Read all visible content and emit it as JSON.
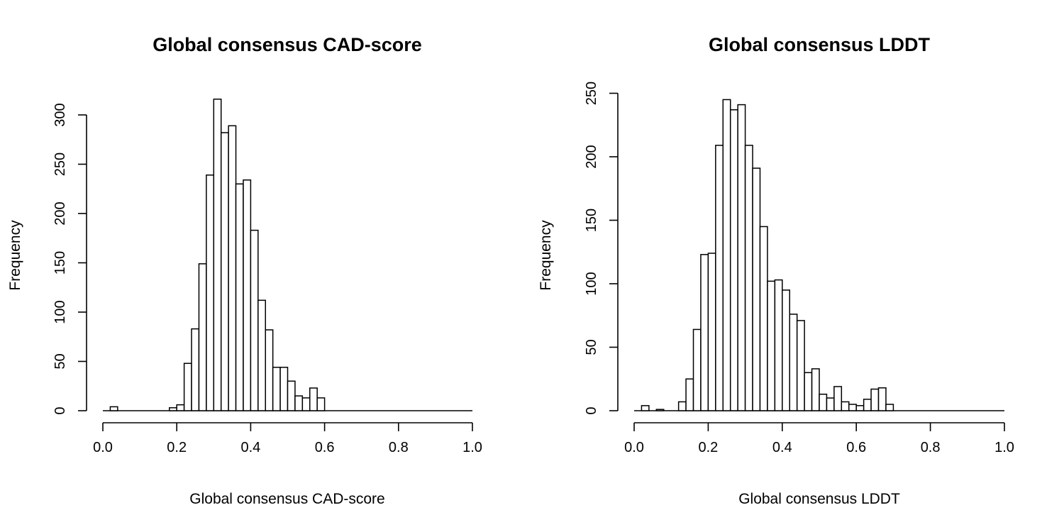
{
  "chart_data": [
    {
      "type": "bar",
      "title": "Global consensus CAD-score",
      "xlabel": "Global consensus CAD-score",
      "ylabel": "Frequency",
      "xlim": [
        0,
        1
      ],
      "ylim": [
        0,
        320
      ],
      "x_ticks": [
        0.0,
        0.2,
        0.4,
        0.6,
        0.8,
        1.0
      ],
      "x_tick_labels": [
        "0.0",
        "0.2",
        "0.4",
        "0.6",
        "0.8",
        "1.0"
      ],
      "y_ticks": [
        0,
        50,
        100,
        150,
        200,
        250,
        300
      ],
      "y_tick_labels": [
        "0",
        "50",
        "100",
        "150",
        "200",
        "250",
        "300"
      ],
      "bin_start": 0.0,
      "bin_width": 0.02,
      "values": [
        0,
        4,
        0,
        0,
        0,
        0,
        0,
        0,
        0,
        3,
        6,
        48,
        83,
        149,
        239,
        316,
        282,
        289,
        230,
        234,
        183,
        112,
        82,
        44,
        44,
        30,
        15,
        13,
        23,
        13,
        0,
        0,
        0,
        0,
        0,
        0,
        0,
        0,
        0,
        0,
        0,
        0,
        0,
        0,
        0,
        0,
        0,
        0,
        0,
        0
      ],
      "grid": false,
      "legend": "none"
    },
    {
      "type": "bar",
      "title": "Global consensus LDDT",
      "xlabel": "Global consensus LDDT",
      "ylabel": "Frequency",
      "xlim": [
        0,
        1
      ],
      "ylim": [
        0,
        250
      ],
      "x_ticks": [
        0.0,
        0.2,
        0.4,
        0.6,
        0.8,
        1.0
      ],
      "x_tick_labels": [
        "0.0",
        "0.2",
        "0.4",
        "0.6",
        "0.8",
        "1.0"
      ],
      "y_ticks": [
        0,
        50,
        100,
        150,
        200,
        250
      ],
      "y_tick_labels": [
        "0",
        "50",
        "100",
        "150",
        "200",
        "250"
      ],
      "bin_start": 0.0,
      "bin_width": 0.02,
      "values": [
        0,
        4,
        0,
        1,
        0,
        0,
        7,
        25,
        64,
        123,
        124,
        209,
        245,
        237,
        241,
        209,
        191,
        145,
        102,
        103,
        95,
        76,
        71,
        30,
        33,
        13,
        10,
        19,
        7,
        5,
        4,
        9,
        17,
        18,
        5,
        0,
        0,
        0,
        0,
        0,
        0,
        0,
        0,
        0,
        0,
        0,
        0,
        0,
        0,
        0
      ],
      "grid": false,
      "legend": "none"
    }
  ]
}
